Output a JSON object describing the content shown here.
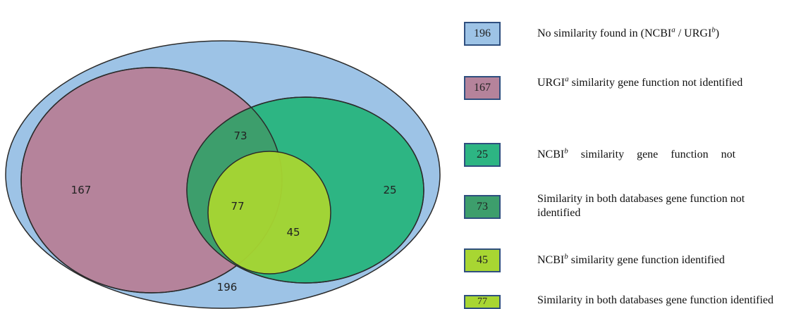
{
  "regions": {
    "outer": "196",
    "urgi_only": "167",
    "overlap_not_identified": "73",
    "ncbi_only": "25",
    "both_identified": "77",
    "ncbi_identified": "45"
  },
  "colors": {
    "outer": "#9dc3e6",
    "urgi": "#b5839b",
    "ncbi": "#2db583",
    "overlap": "#3d9e6c",
    "identified": "#a8d632",
    "border": "#2f4f7f"
  },
  "legend": [
    {
      "value": "196",
      "color": "#9dc3e6",
      "text_before": "No similarity found in (NCBI",
      "sup1": "a",
      "text_mid": " / URGI",
      "sup2": "b",
      "text_after": ")"
    },
    {
      "value": "167",
      "color": "#b5839b",
      "text_before": "URGI",
      "sup1": "a",
      "text_after": " similarity gene function not identified"
    },
    {
      "value": "25",
      "color": "#2db583",
      "text_before": "NCBI",
      "sup1": "b",
      "text_after": " similarity gene function not"
    },
    {
      "value": "73",
      "color": "#3d9e6c",
      "text": "Similarity in both databases gene function not identified"
    },
    {
      "value": "45",
      "color": "#a8d632",
      "text_before": "NCBI",
      "sup1": "b",
      "text_after": " similarity gene function identified"
    },
    {
      "value": "77",
      "color": "#a8d632",
      "text": "Similarity in both databases gene function identified"
    }
  ]
}
